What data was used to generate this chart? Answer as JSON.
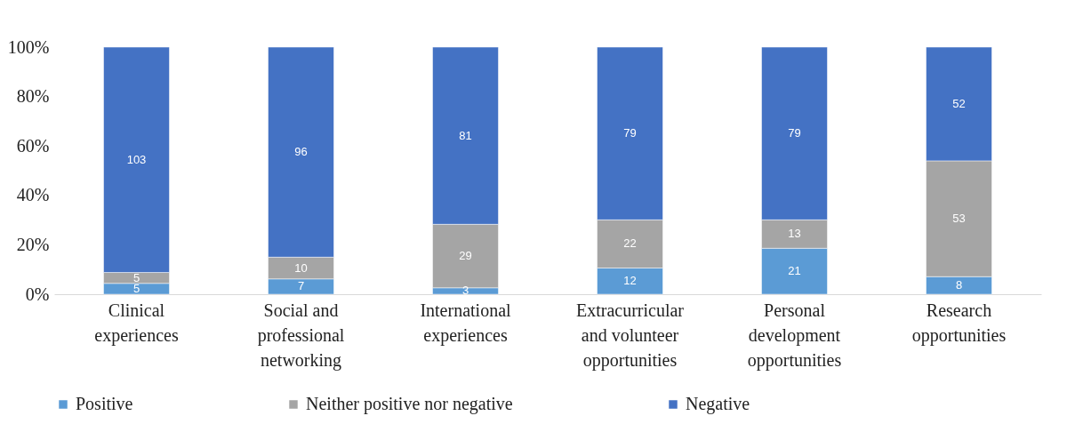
{
  "chart_data": {
    "type": "bar",
    "stacked": true,
    "categories": [
      "Clinical experiences",
      "Social and professional networking",
      "International experiences",
      "Extracurricular and volunteer opportunities",
      "Personal development opportunities",
      "Research opportunities"
    ],
    "series": [
      {
        "name": "Positive",
        "color": "#5b9bd5",
        "values": [
          4.4,
          6.2,
          2.6,
          10.6,
          18.6,
          7.1
        ]
      },
      {
        "name": "Neither positive nor negative",
        "color": "#a5a5a5",
        "values": [
          4.4,
          8.8,
          25.7,
          19.5,
          11.5,
          46.9
        ]
      },
      {
        "name": "Negative",
        "color": "#4472c4",
        "values": [
          91.2,
          85.0,
          71.7,
          69.9,
          69.9,
          46.0
        ]
      }
    ],
    "annotations": [
      "5",
      "5",
      "103",
      "7",
      "10",
      "96",
      "3",
      "29",
      "81",
      "12",
      "22",
      "79",
      "21",
      "13",
      "79",
      "8",
      "53",
      "52"
    ],
    "ylim": [
      0,
      100
    ],
    "yticks": [
      {
        "value": 0,
        "label": "0%"
      },
      {
        "value": 20,
        "label": "20%"
      },
      {
        "value": 40,
        "label": "40%"
      },
      {
        "value": 60,
        "label": "60%"
      },
      {
        "value": 80,
        "label": "80%"
      },
      {
        "value": 100,
        "label": "100%"
      }
    ],
    "grid": false,
    "legend": "bottom"
  }
}
